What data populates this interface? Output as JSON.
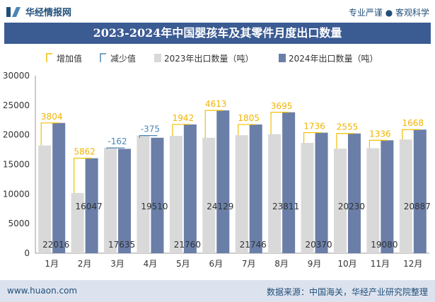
{
  "header": {
    "brand": "华经情报网",
    "slogan": "专业严谨 ● 客观科学"
  },
  "chart_data": {
    "type": "bar",
    "title": "2023-2024年中国婴孩车及其零件月度出口数量",
    "categories": [
      "1月",
      "2月",
      "3月",
      "4月",
      "5月",
      "6月",
      "7月",
      "8月",
      "9月",
      "10月",
      "11月",
      "12月"
    ],
    "series": [
      {
        "name": "2023年出口数量（吨）",
        "values": [
          18212,
          10185,
          17797,
          19885,
          19818,
          19516,
          19941,
          20116,
          18634,
          17675,
          17744,
          19219
        ]
      },
      {
        "name": "2024年出口数量（吨）",
        "values": [
          22016,
          16047,
          17635,
          19510,
          21760,
          24129,
          21746,
          23811,
          20370,
          20230,
          19080,
          20887
        ]
      }
    ],
    "changes": [
      3804,
      5862,
      -162,
      -375,
      1942,
      4613,
      1805,
      3695,
      1736,
      2555,
      1336,
      1668
    ],
    "legend": [
      "增加值",
      "减少值",
      "2023年出口数量（吨）",
      "2024年出口数量（吨）"
    ],
    "legend_position": "top-left",
    "ylim": [
      0,
      30000
    ],
    "yticks": [
      0,
      5000,
      10000,
      15000,
      20000,
      25000,
      30000
    ],
    "xlabel": "",
    "ylabel": "",
    "colors": {
      "s2023": "#d9d9d9",
      "s2024": "#6a7ea8",
      "increase": "#f0c000",
      "decrease": "#4b86b4",
      "increase_text": "#f0b400",
      "decrease_text": "#4b86b4"
    }
  },
  "footer": {
    "site": "www.huaon.com",
    "source": "数据来源：中国海关，华经产业研究院整理"
  }
}
